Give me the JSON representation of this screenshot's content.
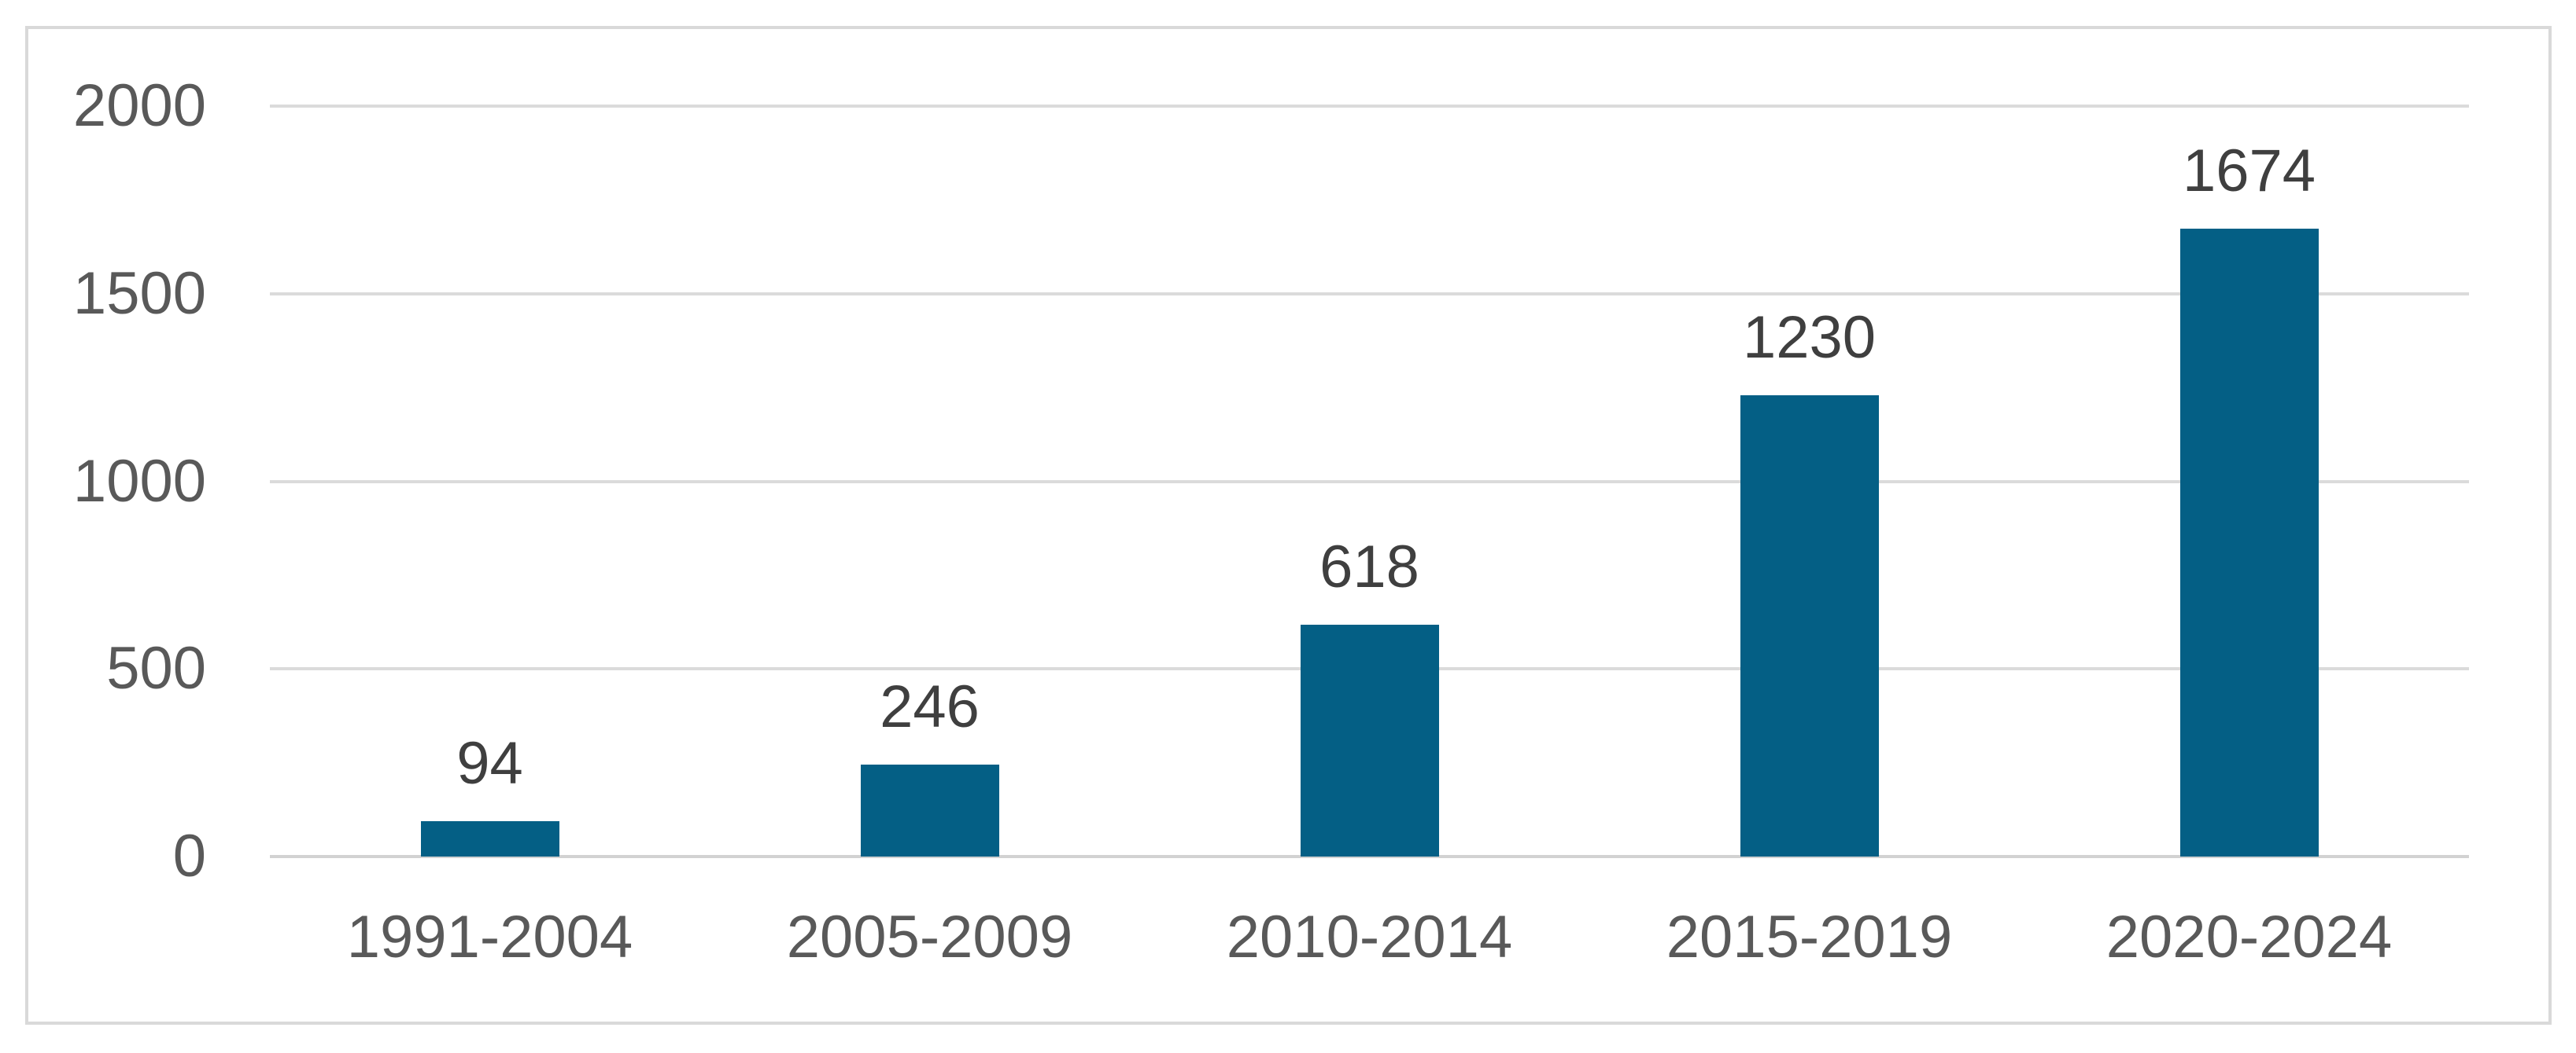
{
  "chart_data": {
    "type": "bar",
    "title": "",
    "xlabel": "",
    "ylabel": "",
    "categories": [
      "1991-2004",
      "2005-2009",
      "2010-2014",
      "2015-2019",
      "2020-2024"
    ],
    "values": [
      94,
      246,
      618,
      1230,
      1674
    ],
    "data_labels": [
      "94",
      "246",
      "618",
      "1230",
      "1674"
    ],
    "ylim": [
      0,
      2000
    ],
    "yticks": [
      0,
      500,
      1000,
      1500,
      2000
    ],
    "ytick_labels": [
      "0",
      "500",
      "1000",
      "1500",
      "2000"
    ],
    "grid": "horizontal",
    "legend": "none",
    "colors": {
      "bar_fill": "#045F85",
      "gridline": "#DBDBDB",
      "axis_baseline": "#D2D2D2",
      "frame_border": "#D9D9D9",
      "tick_label_text": "#595959",
      "data_label_text": "#3F3F3F",
      "background": "#FFFFFF"
    }
  }
}
